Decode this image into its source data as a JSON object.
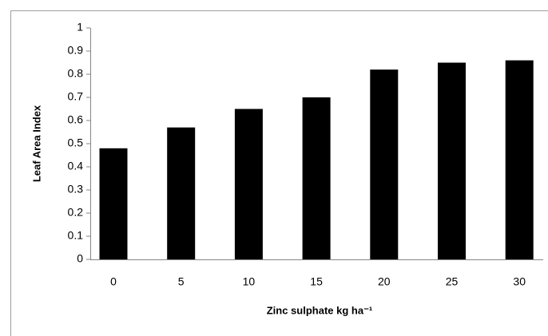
{
  "chart_data": {
    "type": "bar",
    "xlabel": "Zinc sulphate kg ha⁻¹",
    "ylabel": "Leaf Area Index",
    "categories": [
      "0",
      "5",
      "10",
      "15",
      "20",
      "25",
      "30"
    ],
    "values": [
      0.48,
      0.57,
      0.65,
      0.7,
      0.82,
      0.85,
      0.86
    ],
    "color": "#000000",
    "ylim": [
      0,
      1
    ],
    "yticks": [
      0,
      0.1,
      0.2,
      0.3,
      0.4,
      0.5,
      0.6,
      0.7,
      0.8,
      0.9,
      1
    ],
    "grid": false
  }
}
